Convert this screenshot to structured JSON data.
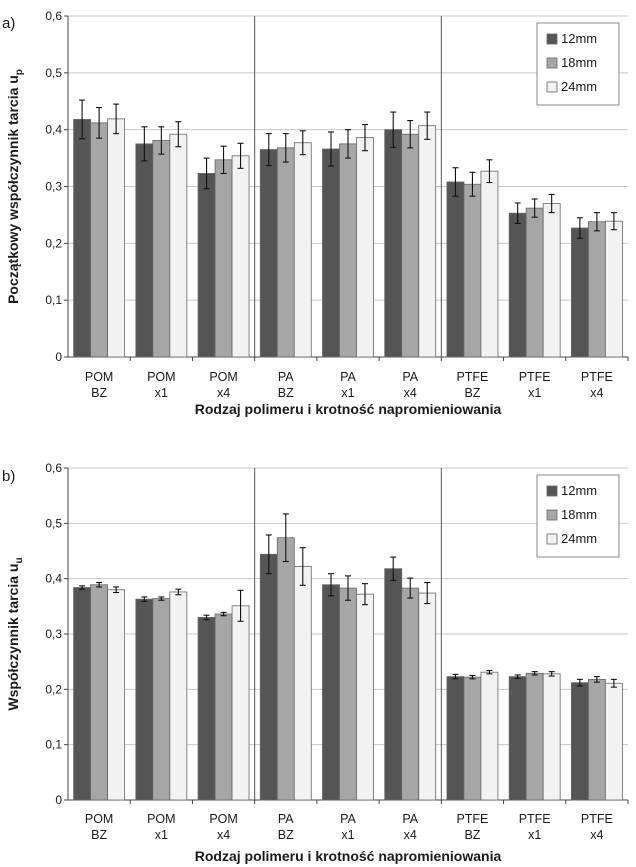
{
  "chart_data": [
    {
      "type": "bar",
      "panel_label": "a)",
      "ylabel": "Początkowy współczynnik tarcia u",
      "ylabel_sub": "p",
      "xlabel": "Rodzaj polimeru i krotność napromieniowania",
      "ylim": [
        0,
        0.6
      ],
      "yticks": [
        "0",
        "0,1",
        "0,2",
        "0,3",
        "0,4",
        "0,5",
        "0,6"
      ],
      "categories": [
        [
          "POM",
          "BZ"
        ],
        [
          "POM",
          "x1"
        ],
        [
          "POM",
          "x4"
        ],
        [
          "PA",
          "BZ"
        ],
        [
          "PA",
          "x1"
        ],
        [
          "PA",
          "x4"
        ],
        [
          "PTFE",
          "BZ"
        ],
        [
          "PTFE",
          "x1"
        ],
        [
          "PTFE",
          "x4"
        ]
      ],
      "group_dividers_after": [
        2,
        5
      ],
      "legend_position": "top-right",
      "grid": true,
      "series": [
        {
          "name": "12mm",
          "color": "#555555",
          "values": [
            0.418,
            0.375,
            0.323,
            0.365,
            0.366,
            0.4,
            0.308,
            0.253,
            0.227
          ],
          "errors": [
            0.034,
            0.03,
            0.027,
            0.028,
            0.03,
            0.031,
            0.025,
            0.018,
            0.018
          ]
        },
        {
          "name": "18mm",
          "color": "#a6a6a6",
          "values": [
            0.412,
            0.381,
            0.347,
            0.368,
            0.375,
            0.392,
            0.304,
            0.262,
            0.238
          ],
          "errors": [
            0.027,
            0.024,
            0.024,
            0.025,
            0.025,
            0.024,
            0.021,
            0.016,
            0.016
          ]
        },
        {
          "name": "24mm",
          "color": "#f2f2f2",
          "values": [
            0.419,
            0.392,
            0.354,
            0.377,
            0.386,
            0.407,
            0.327,
            0.27,
            0.239
          ],
          "errors": [
            0.026,
            0.022,
            0.022,
            0.021,
            0.023,
            0.024,
            0.02,
            0.016,
            0.015
          ]
        }
      ]
    },
    {
      "type": "bar",
      "panel_label": "b)",
      "ylabel": "Współczynnik tarcia u",
      "ylabel_sub": "u",
      "xlabel": "Rodzaj polimeru i krotność napromieniowania",
      "ylim": [
        0,
        0.6
      ],
      "yticks": [
        "0",
        "0,1",
        "0,2",
        "0,3",
        "0,4",
        "0,5",
        "0,6"
      ],
      "categories": [
        [
          "POM",
          "BZ"
        ],
        [
          "POM",
          "x1"
        ],
        [
          "POM",
          "x4"
        ],
        [
          "PA",
          "BZ"
        ],
        [
          "PA",
          "x1"
        ],
        [
          "PA",
          "x4"
        ],
        [
          "PTFE",
          "BZ"
        ],
        [
          "PTFE",
          "x1"
        ],
        [
          "PTFE",
          "x4"
        ]
      ],
      "group_dividers_after": [
        2,
        5
      ],
      "legend_position": "top-right",
      "grid": true,
      "series": [
        {
          "name": "12mm",
          "color": "#555555",
          "values": [
            0.384,
            0.363,
            0.33,
            0.444,
            0.389,
            0.418,
            0.223,
            0.223,
            0.212
          ],
          "errors": [
            0.003,
            0.004,
            0.004,
            0.035,
            0.02,
            0.021,
            0.004,
            0.003,
            0.006
          ]
        },
        {
          "name": "18mm",
          "color": "#a6a6a6",
          "values": [
            0.389,
            0.364,
            0.336,
            0.474,
            0.383,
            0.383,
            0.222,
            0.229,
            0.218
          ],
          "errors": [
            0.004,
            0.003,
            0.003,
            0.043,
            0.022,
            0.018,
            0.003,
            0.003,
            0.005
          ]
        },
        {
          "name": "24mm",
          "color": "#f2f2f2",
          "values": [
            0.38,
            0.376,
            0.351,
            0.422,
            0.372,
            0.374,
            0.231,
            0.228,
            0.211
          ],
          "errors": [
            0.005,
            0.005,
            0.028,
            0.034,
            0.019,
            0.019,
            0.003,
            0.004,
            0.007
          ]
        }
      ]
    }
  ]
}
